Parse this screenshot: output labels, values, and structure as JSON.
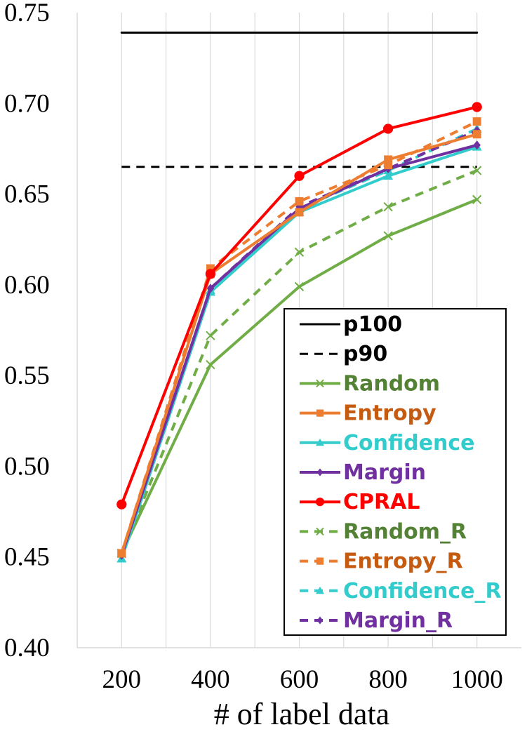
{
  "chart_data": {
    "type": "line",
    "xlabel": "# of label data",
    "ylabel": "",
    "title": "",
    "x": [
      200,
      400,
      600,
      800,
      1000
    ],
    "xlim": [
      100,
      1100
    ],
    "ylim": [
      0.4,
      0.75
    ],
    "yticks": [
      "0.40",
      "0.45",
      "0.50",
      "0.55",
      "0.60",
      "0.65",
      "0.70",
      "0.75"
    ],
    "xticks": [
      "200",
      "400",
      "600",
      "800",
      "1000"
    ],
    "grid": "vertical",
    "legend_position": "bottom-right",
    "series": [
      {
        "name": "p100",
        "color": "#000000",
        "dash": "solid",
        "marker": "none",
        "values": [
          0.739,
          0.739,
          0.739,
          0.739,
          0.739
        ]
      },
      {
        "name": "p90",
        "color": "#000000",
        "dash": "dashed",
        "marker": "none",
        "values": [
          0.665,
          0.665,
          0.665,
          0.665,
          0.665
        ]
      },
      {
        "name": "Random",
        "color": "#70AD47",
        "text_color": "#548235",
        "dash": "solid",
        "marker": "x",
        "values": [
          0.452,
          0.556,
          0.599,
          0.627,
          0.647
        ]
      },
      {
        "name": "Entropy",
        "color": "#ED7D31",
        "text_color": "#C55A11",
        "dash": "solid",
        "marker": "square",
        "values": [
          0.452,
          0.606,
          0.64,
          0.669,
          0.683
        ]
      },
      {
        "name": "Confidence",
        "color": "#33CCCC",
        "text_color": "#33CCCC",
        "dash": "solid",
        "marker": "triangle",
        "values": [
          0.449,
          0.596,
          0.64,
          0.66,
          0.676
        ]
      },
      {
        "name": "Margin",
        "color": "#7030A0",
        "text_color": "#7030A0",
        "dash": "solid",
        "marker": "diamond",
        "values": [
          0.451,
          0.598,
          0.642,
          0.664,
          0.677
        ]
      },
      {
        "name": "CPRAL",
        "color": "#FF0000",
        "text_color": "#FF0000",
        "dash": "solid",
        "marker": "circle",
        "values": [
          0.479,
          0.606,
          0.66,
          0.686,
          0.698
        ]
      },
      {
        "name": "Random_R",
        "color": "#70AD47",
        "text_color": "#548235",
        "dash": "dashed",
        "marker": "x",
        "values": [
          0.452,
          0.572,
          0.618,
          0.643,
          0.663
        ]
      },
      {
        "name": "Entropy_R",
        "color": "#ED7D31",
        "text_color": "#C55A11",
        "dash": "dashed",
        "marker": "square",
        "values": [
          0.452,
          0.609,
          0.646,
          0.666,
          0.69
        ]
      },
      {
        "name": "Confidence_R",
        "color": "#33CCCC",
        "text_color": "#33CCCC",
        "dash": "dashed",
        "marker": "triangle",
        "values": [
          0.449,
          0.597,
          0.642,
          0.663,
          0.686
        ]
      },
      {
        "name": "Margin_R",
        "color": "#7030A0",
        "text_color": "#7030A0",
        "dash": "dashed",
        "marker": "diamond",
        "values": [
          0.451,
          0.598,
          0.643,
          0.664,
          0.685
        ]
      }
    ]
  }
}
